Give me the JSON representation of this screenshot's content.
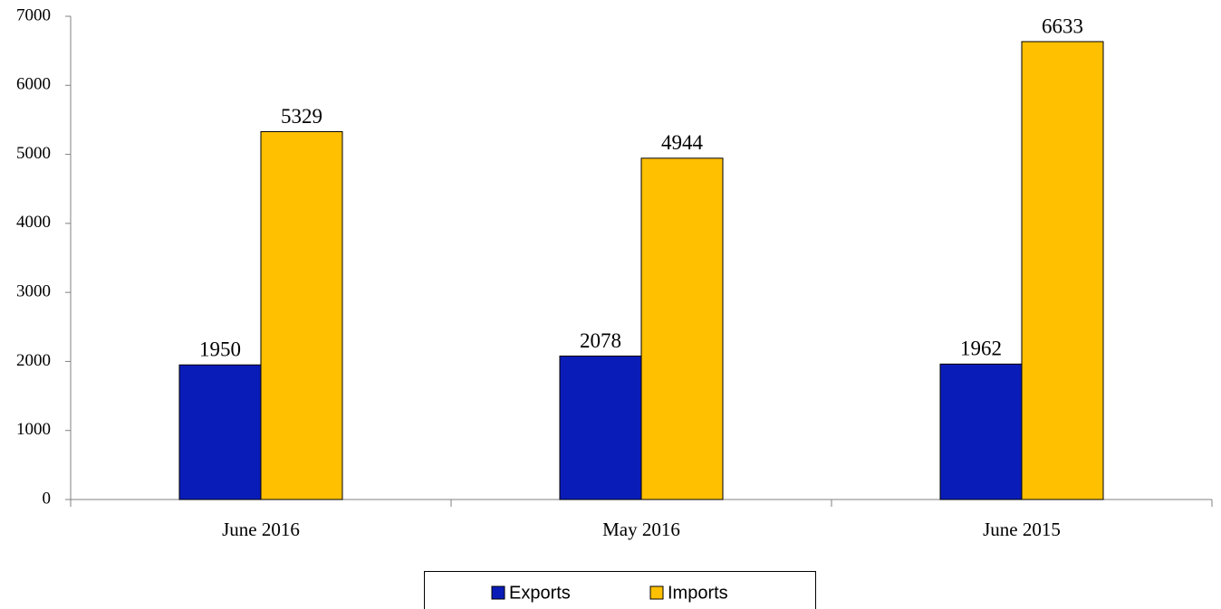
{
  "chart_data": {
    "type": "bar",
    "categories": [
      "June 2016",
      "May 2016",
      "June 2015"
    ],
    "series": [
      {
        "name": "Exports",
        "color": "#0a1cb8",
        "values": [
          1950,
          2078,
          1962
        ]
      },
      {
        "name": "Imports",
        "color": "#ffc000",
        "values": [
          5329,
          4944,
          6633
        ]
      }
    ],
    "ylim": [
      0,
      7000
    ],
    "yticks": [
      0,
      1000,
      2000,
      3000,
      4000,
      5000,
      6000,
      7000
    ],
    "grid": false,
    "legend": "bottom"
  }
}
